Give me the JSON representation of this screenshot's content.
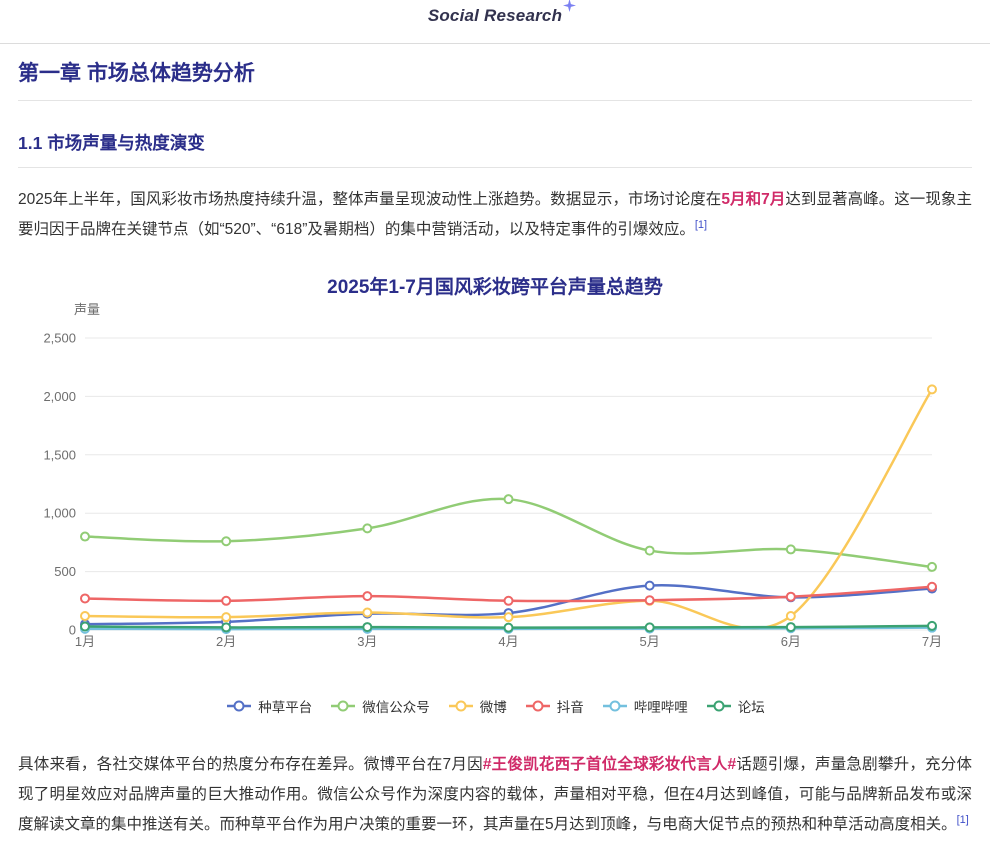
{
  "header": {
    "logo_text": "Social Research",
    "sparkle_color": "#7b80f2"
  },
  "headings": {
    "chapter": "第一章 市场总体趋势分析",
    "subsection": "1.1 市场声量与热度演变"
  },
  "paragraph1": {
    "seg1": "2025年上半年，国风彩妆市场热度持续升温，整体声量呈现波动性上涨趋势。数据显示，市场讨论度在",
    "highlight": "5月和7月",
    "seg2": "达到显著高峰。这一现象主要归因于品牌在关键节点（如“520”、“618”及暑期档）的集中营销活动，以及特定事件的引爆效应。",
    "citation": "[1]"
  },
  "paragraph2": {
    "seg1": "具体来看，各社交媒体平台的热度分布存在差异。微博平台在7月因",
    "highlight": "#王俊凯花西子首位全球彩妆代言人#",
    "seg2": "话题引爆，声量急剧攀升，充分体现了明星效应对品牌声量的巨大推动作用。微信公众号作为深度内容的载体，声量相对平稳，但在4月达到峰值，可能与品牌新品发布或深度解读文章的集中推送有关。而种草平台作为用户决策的重要一环，其声量在5月达到顶峰，与电商大促节点的预热和种草活动高度相关。",
    "citation": "[1]"
  },
  "chart_data": {
    "type": "line",
    "title": "2025年1-7月国风彩妆跨平台声量总趋势",
    "ylabel": "声量",
    "categories": [
      "1月",
      "2月",
      "3月",
      "4月",
      "5月",
      "6月",
      "7月"
    ],
    "series": [
      {
        "name": "种草平台",
        "color": "#5470c6",
        "values": [
          50,
          70,
          140,
          145,
          380,
          280,
          355
        ]
      },
      {
        "name": "微信公众号",
        "color": "#91cc75",
        "values": [
          800,
          760,
          870,
          1120,
          680,
          690,
          540
        ]
      },
      {
        "name": "微博",
        "color": "#fac858",
        "values": [
          120,
          110,
          150,
          110,
          250,
          120,
          2060
        ]
      },
      {
        "name": "抖音",
        "color": "#ee6666",
        "values": [
          270,
          250,
          290,
          250,
          255,
          285,
          370
        ]
      },
      {
        "name": "哔哩哔哩",
        "color": "#73c0de",
        "values": [
          10,
          8,
          10,
          10,
          12,
          15,
          20
        ]
      },
      {
        "name": "论坛",
        "color": "#3ba272",
        "values": [
          30,
          22,
          25,
          20,
          22,
          25,
          35
        ]
      }
    ],
    "ylim": [
      0,
      2500
    ],
    "ytick_step": 500,
    "grid": true,
    "legend_position": "bottom",
    "grid_color": "#e8e8e8",
    "axis_label_color": "#6e6e6e"
  }
}
